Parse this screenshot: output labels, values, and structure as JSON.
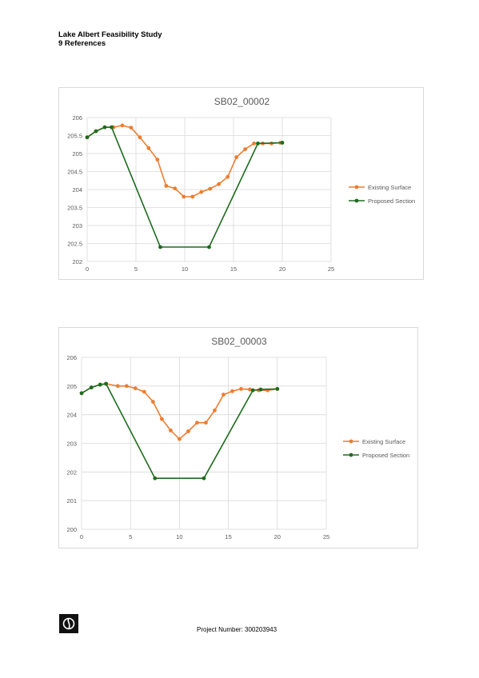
{
  "header": {
    "line1": "Lake Albert Feasibility Study",
    "line2": "9 References"
  },
  "footer": {
    "project_number": "Project Number: 300203943"
  },
  "logo": {
    "icon": "company-logo-icon"
  },
  "chart_data": [
    {
      "type": "line",
      "title": "SB02_00002",
      "xlim": [
        0,
        25
      ],
      "ylim": [
        202,
        206
      ],
      "x_ticks": [
        "0",
        "5",
        "10",
        "15",
        "20",
        "25"
      ],
      "y_ticks": [
        "202",
        "202.5",
        "203",
        "203.5",
        "204",
        "204.5",
        "205",
        "205.5",
        "206"
      ],
      "legend_position": "right",
      "series": [
        {
          "name": "Existing Surface",
          "color": "#ed7d31",
          "points": [
            [
              0,
              205.45
            ],
            [
              0.9,
              205.62
            ],
            [
              1.8,
              205.73
            ],
            [
              2.7,
              205.73
            ],
            [
              3.6,
              205.78
            ],
            [
              4.5,
              205.72
            ],
            [
              5.4,
              205.45
            ],
            [
              6.3,
              205.15
            ],
            [
              7.2,
              204.83
            ],
            [
              8.1,
              204.1
            ],
            [
              9.0,
              204.03
            ],
            [
              9.9,
              203.8
            ],
            [
              10.8,
              203.8
            ],
            [
              11.7,
              203.93
            ],
            [
              12.6,
              204.02
            ],
            [
              13.5,
              204.15
            ],
            [
              14.4,
              204.35
            ],
            [
              15.3,
              204.9
            ],
            [
              16.2,
              205.12
            ],
            [
              17.1,
              205.28
            ],
            [
              18.0,
              205.28
            ],
            [
              18.9,
              205.28
            ],
            [
              19.8,
              205.3
            ]
          ]
        },
        {
          "name": "Proposed Section",
          "color": "#1e6b1e",
          "points": [
            [
              0,
              205.45
            ],
            [
              0.9,
              205.62
            ],
            [
              1.8,
              205.73
            ],
            [
              2.5,
              205.73
            ],
            [
              7.5,
              202.4
            ],
            [
              12.5,
              202.4
            ],
            [
              17.5,
              205.28
            ],
            [
              20,
              205.3
            ]
          ]
        }
      ]
    },
    {
      "type": "line",
      "title": "SB02_00003",
      "xlim": [
        0,
        25
      ],
      "ylim": [
        200,
        206
      ],
      "x_ticks": [
        "0",
        "5",
        "10",
        "15",
        "20",
        "25"
      ],
      "y_ticks": [
        "200",
        "201",
        "202",
        "203",
        "204",
        "205",
        "206"
      ],
      "legend_position": "right",
      "series": [
        {
          "name": "Existing Surface",
          "color": "#ed7d31",
          "points": [
            [
              0,
              204.75
            ],
            [
              1,
              204.95
            ],
            [
              1.9,
              205.05
            ],
            [
              2.5,
              205.08
            ],
            [
              3.7,
              205.0
            ],
            [
              4.6,
              205.0
            ],
            [
              5.5,
              204.92
            ],
            [
              6.4,
              204.8
            ],
            [
              7.3,
              204.45
            ],
            [
              8.2,
              203.85
            ],
            [
              9.1,
              203.45
            ],
            [
              10.0,
              203.15
            ],
            [
              10.9,
              203.42
            ],
            [
              11.8,
              203.72
            ],
            [
              12.7,
              203.72
            ],
            [
              13.6,
              204.15
            ],
            [
              14.5,
              204.7
            ],
            [
              15.4,
              204.82
            ],
            [
              16.3,
              204.9
            ],
            [
              17.2,
              204.88
            ],
            [
              18.1,
              204.85
            ],
            [
              19.0,
              204.85
            ],
            [
              20.0,
              204.9
            ]
          ]
        },
        {
          "name": "Proposed Section",
          "color": "#1e6b1e",
          "points": [
            [
              0,
              204.75
            ],
            [
              1,
              204.95
            ],
            [
              1.9,
              205.05
            ],
            [
              2.5,
              205.08
            ],
            [
              7.5,
              201.78
            ],
            [
              12.5,
              201.78
            ],
            [
              17.5,
              204.85
            ],
            [
              18.3,
              204.88
            ],
            [
              20,
              204.9
            ]
          ]
        }
      ]
    }
  ]
}
